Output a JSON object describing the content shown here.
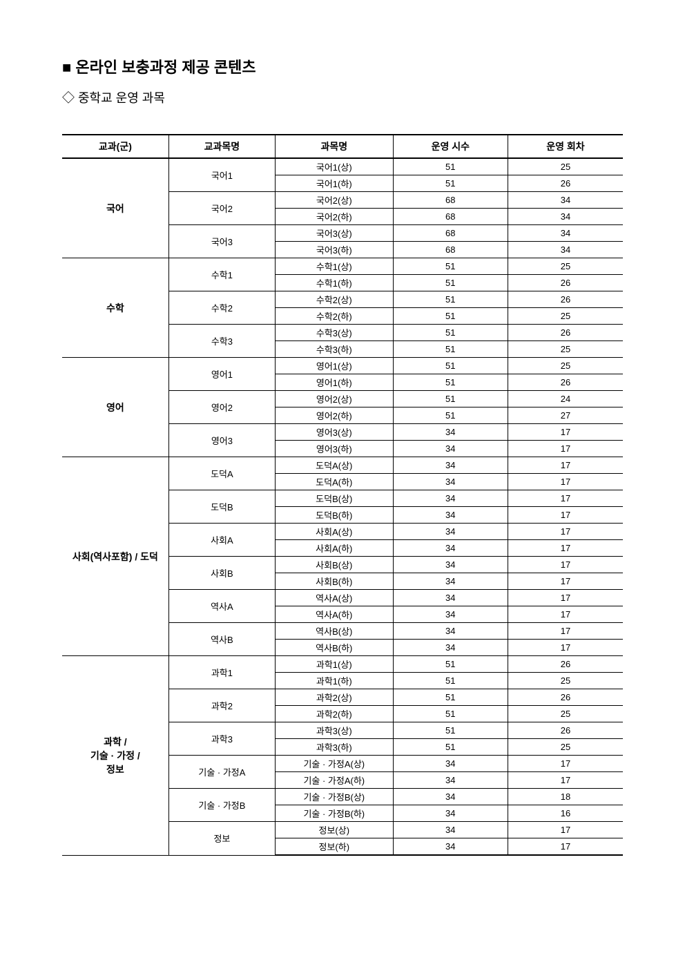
{
  "title": "■ 온라인 보충과정 제공 콘텐츠",
  "subtitle": "◇ 중학교 운영 과목",
  "columns": {
    "group": "교과(군)",
    "textbook": "교과목명",
    "subject": "과목명",
    "hours": "운영 시수",
    "sessions": "운영 회차"
  },
  "groups": [
    {
      "name": "국어",
      "textbooks": [
        {
          "name": "국어1",
          "rows": [
            {
              "subject": "국어1(상)",
              "hours": "51",
              "sessions": "25"
            },
            {
              "subject": "국어1(하)",
              "hours": "51",
              "sessions": "26"
            }
          ]
        },
        {
          "name": "국어2",
          "rows": [
            {
              "subject": "국어2(상)",
              "hours": "68",
              "sessions": "34"
            },
            {
              "subject": "국어2(하)",
              "hours": "68",
              "sessions": "34"
            }
          ]
        },
        {
          "name": "국어3",
          "rows": [
            {
              "subject": "국어3(상)",
              "hours": "68",
              "sessions": "34"
            },
            {
              "subject": "국어3(하)",
              "hours": "68",
              "sessions": "34"
            }
          ]
        }
      ]
    },
    {
      "name": "수학",
      "textbooks": [
        {
          "name": "수학1",
          "rows": [
            {
              "subject": "수학1(상)",
              "hours": "51",
              "sessions": "25"
            },
            {
              "subject": "수학1(하)",
              "hours": "51",
              "sessions": "26"
            }
          ]
        },
        {
          "name": "수학2",
          "rows": [
            {
              "subject": "수학2(상)",
              "hours": "51",
              "sessions": "26"
            },
            {
              "subject": "수학2(하)",
              "hours": "51",
              "sessions": "25"
            }
          ]
        },
        {
          "name": "수학3",
          "rows": [
            {
              "subject": "수학3(상)",
              "hours": "51",
              "sessions": "26"
            },
            {
              "subject": "수학3(하)",
              "hours": "51",
              "sessions": "25"
            }
          ]
        }
      ]
    },
    {
      "name": "영어",
      "textbooks": [
        {
          "name": "영어1",
          "rows": [
            {
              "subject": "영어1(상)",
              "hours": "51",
              "sessions": "25"
            },
            {
              "subject": "영어1(하)",
              "hours": "51",
              "sessions": "26"
            }
          ]
        },
        {
          "name": "영어2",
          "rows": [
            {
              "subject": "영어2(상)",
              "hours": "51",
              "sessions": "24"
            },
            {
              "subject": "영어2(하)",
              "hours": "51",
              "sessions": "27"
            }
          ]
        },
        {
          "name": "영어3",
          "rows": [
            {
              "subject": "영어3(상)",
              "hours": "34",
              "sessions": "17"
            },
            {
              "subject": "영어3(하)",
              "hours": "34",
              "sessions": "17"
            }
          ]
        }
      ]
    },
    {
      "name": "사회(역사포함) / 도덕",
      "textbooks": [
        {
          "name": "도덕A",
          "rows": [
            {
              "subject": "도덕A(상)",
              "hours": "34",
              "sessions": "17"
            },
            {
              "subject": "도덕A(하)",
              "hours": "34",
              "sessions": "17"
            }
          ]
        },
        {
          "name": "도덕B",
          "rows": [
            {
              "subject": "도덕B(상)",
              "hours": "34",
              "sessions": "17"
            },
            {
              "subject": "도덕B(하)",
              "hours": "34",
              "sessions": "17"
            }
          ]
        },
        {
          "name": "사회A",
          "rows": [
            {
              "subject": "사회A(상)",
              "hours": "34",
              "sessions": "17"
            },
            {
              "subject": "사회A(하)",
              "hours": "34",
              "sessions": "17"
            }
          ]
        },
        {
          "name": "사회B",
          "rows": [
            {
              "subject": "사회B(상)",
              "hours": "34",
              "sessions": "17"
            },
            {
              "subject": "사회B(하)",
              "hours": "34",
              "sessions": "17"
            }
          ]
        },
        {
          "name": "역사A",
          "rows": [
            {
              "subject": "역사A(상)",
              "hours": "34",
              "sessions": "17"
            },
            {
              "subject": "역사A(하)",
              "hours": "34",
              "sessions": "17"
            }
          ]
        },
        {
          "name": "역사B",
          "rows": [
            {
              "subject": "역사B(상)",
              "hours": "34",
              "sessions": "17"
            },
            {
              "subject": "역사B(하)",
              "hours": "34",
              "sessions": "17"
            }
          ]
        }
      ]
    },
    {
      "name": "과학 /\n기술 · 가정 /\n정보",
      "textbooks": [
        {
          "name": "과학1",
          "rows": [
            {
              "subject": "과학1(상)",
              "hours": "51",
              "sessions": "26"
            },
            {
              "subject": "과학1(하)",
              "hours": "51",
              "sessions": "25"
            }
          ]
        },
        {
          "name": "과학2",
          "rows": [
            {
              "subject": "과학2(상)",
              "hours": "51",
              "sessions": "26"
            },
            {
              "subject": "과학2(하)",
              "hours": "51",
              "sessions": "25"
            }
          ]
        },
        {
          "name": "과학3",
          "rows": [
            {
              "subject": "과학3(상)",
              "hours": "51",
              "sessions": "26"
            },
            {
              "subject": "과학3(하)",
              "hours": "51",
              "sessions": "25"
            }
          ]
        },
        {
          "name": "기술 · 가정A",
          "rows": [
            {
              "subject": "기술 · 가정A(상)",
              "hours": "34",
              "sessions": "17"
            },
            {
              "subject": "기술 · 가정A(하)",
              "hours": "34",
              "sessions": "17"
            }
          ]
        },
        {
          "name": "기술 · 가정B",
          "rows": [
            {
              "subject": "기술 · 가정B(상)",
              "hours": "34",
              "sessions": "18"
            },
            {
              "subject": "기술 · 가정B(하)",
              "hours": "34",
              "sessions": "16"
            }
          ]
        },
        {
          "name": "정보",
          "rows": [
            {
              "subject": "정보(상)",
              "hours": "34",
              "sessions": "17"
            },
            {
              "subject": "정보(하)",
              "hours": "34",
              "sessions": "17"
            }
          ]
        }
      ]
    }
  ]
}
